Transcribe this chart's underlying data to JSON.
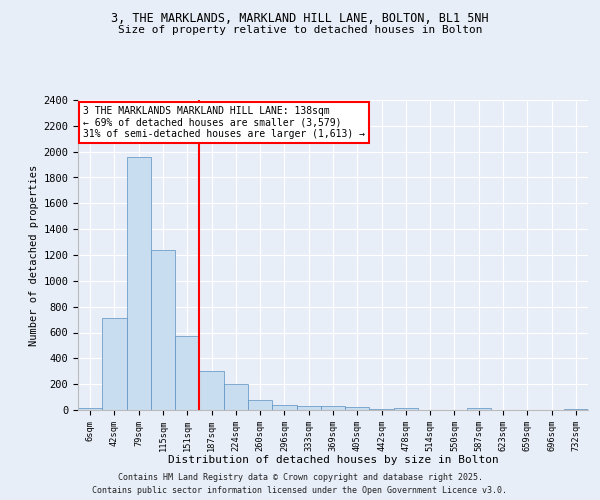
{
  "title_line1": "3, THE MARKLANDS, MARKLAND HILL LANE, BOLTON, BL1 5NH",
  "title_line2": "Size of property relative to detached houses in Bolton",
  "xlabel": "Distribution of detached houses by size in Bolton",
  "ylabel": "Number of detached properties",
  "bar_color": "#c9ddf0",
  "bar_edge_color": "#5a8fc2",
  "background_color": "#e8eef8",
  "grid_color": "#ffffff",
  "categories": [
    "6sqm",
    "42sqm",
    "79sqm",
    "115sqm",
    "151sqm",
    "187sqm",
    "224sqm",
    "260sqm",
    "296sqm",
    "333sqm",
    "369sqm",
    "405sqm",
    "442sqm",
    "478sqm",
    "514sqm",
    "550sqm",
    "587sqm",
    "623sqm",
    "659sqm",
    "696sqm",
    "732sqm"
  ],
  "values": [
    15,
    710,
    1960,
    1240,
    570,
    305,
    200,
    80,
    40,
    30,
    30,
    25,
    5,
    15,
    3,
    2,
    12,
    2,
    1,
    1,
    5
  ],
  "ylim": [
    0,
    2400
  ],
  "yticks": [
    0,
    200,
    400,
    600,
    800,
    1000,
    1200,
    1400,
    1600,
    1800,
    2000,
    2200,
    2400
  ],
  "red_line_x": 4.5,
  "annotation_text": "3 THE MARKLANDS MARKLAND HILL LANE: 138sqm\n← 69% of detached houses are smaller (3,579)\n31% of semi-detached houses are larger (1,613) →",
  "footer_line1": "Contains HM Land Registry data © Crown copyright and database right 2025.",
  "footer_line2": "Contains public sector information licensed under the Open Government Licence v3.0."
}
